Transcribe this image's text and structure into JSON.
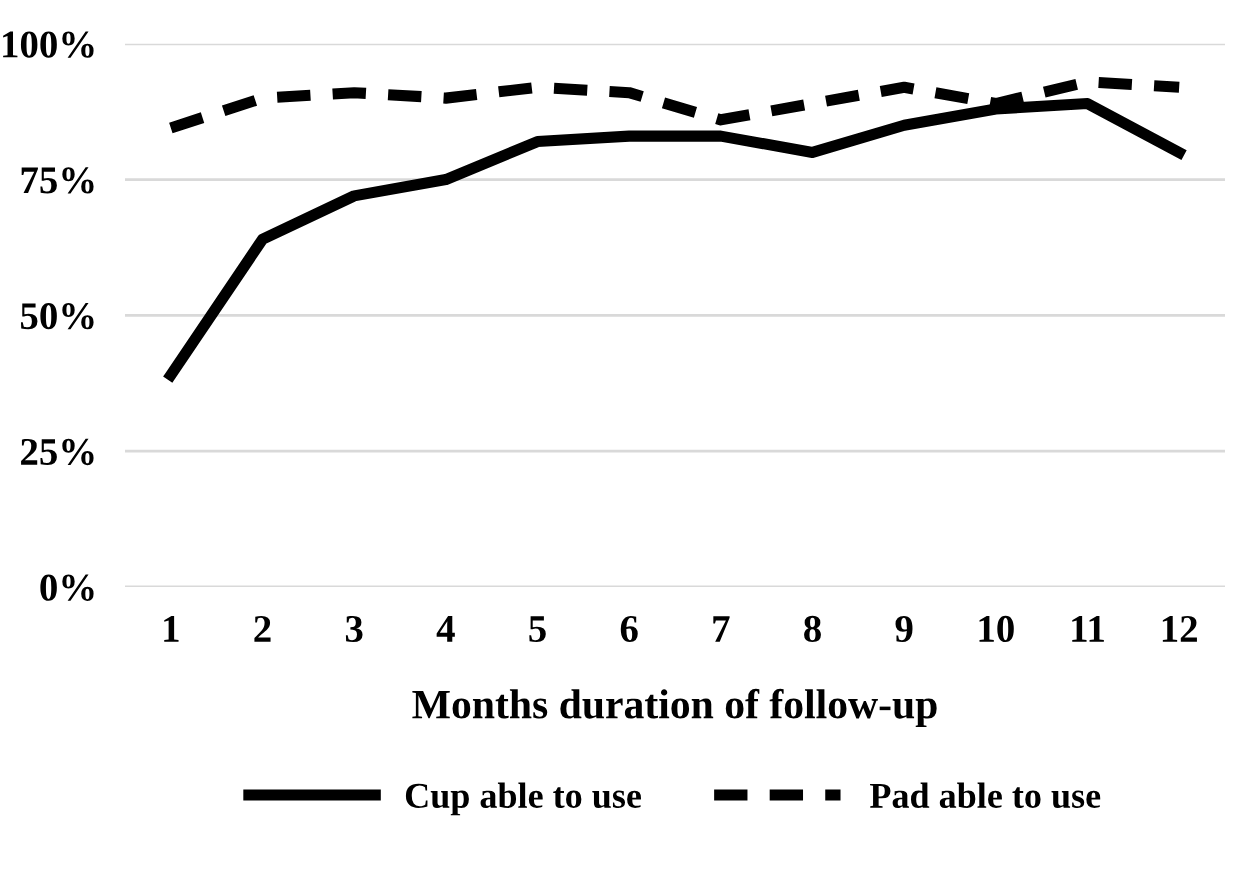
{
  "chart_data": {
    "type": "line",
    "xlabel": "Months duration of follow-up",
    "categories": [
      "1",
      "2",
      "3",
      "4",
      "5",
      "6",
      "7",
      "8",
      "9",
      "10",
      "11",
      "12"
    ],
    "series": [
      {
        "name": "Cup able to use",
        "color": "#000000",
        "line_style": "solid",
        "values": [
          39,
          64,
          72,
          75,
          82,
          83,
          83,
          80,
          85,
          88,
          89,
          80
        ]
      },
      {
        "name": "Pad able to use",
        "color": "#000000",
        "line_style": "dashed",
        "values": [
          84.5,
          90,
          91,
          90,
          92,
          91,
          86,
          89,
          92,
          89,
          93,
          92
        ]
      }
    ],
    "ylim": [
      0,
      100
    ],
    "yticks": [
      {
        "value": 0,
        "label": "0%"
      },
      {
        "value": 25,
        "label": "25%"
      },
      {
        "value": 50,
        "label": "50%"
      },
      {
        "value": 75,
        "label": "75%"
      },
      {
        "value": 100,
        "label": "100%"
      }
    ],
    "grid": "y",
    "legend": "bottom",
    "marker": "none"
  }
}
